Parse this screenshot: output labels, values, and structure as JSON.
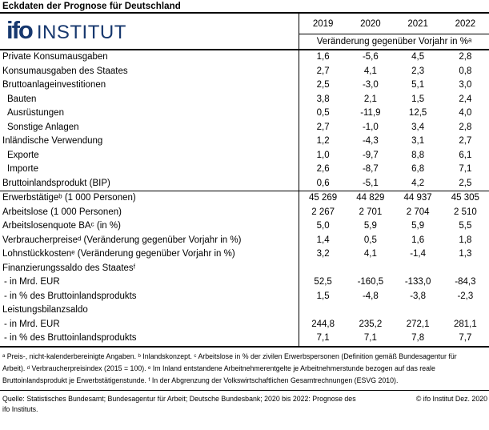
{
  "title": "Eckdaten der Prognose für Deutschland",
  "logo": {
    "wordmark": "ifo",
    "institut": "INSTITUT",
    "brand_color": "#17386e"
  },
  "table": {
    "years": [
      "2019",
      "2020",
      "2021",
      "2022"
    ],
    "subheader": "Veränderung gegenüber Vorjahr in %ᵃ",
    "rows": [
      {
        "label": "Private Konsumausgaben",
        "indent": 0,
        "values": [
          "1,6",
          "-5,6",
          "4,5",
          "2,8"
        ]
      },
      {
        "label": "Konsumausgaben des Staates",
        "indent": 0,
        "values": [
          "2,7",
          "4,1",
          "2,3",
          "0,8"
        ]
      },
      {
        "label": "Bruttoanlageinvestitionen",
        "indent": 0,
        "values": [
          "2,5",
          "-3,0",
          "5,1",
          "3,0"
        ]
      },
      {
        "label": "Bauten",
        "indent": 1,
        "values": [
          "3,8",
          "2,1",
          "1,5",
          "2,4"
        ]
      },
      {
        "label": "Ausrüstungen",
        "indent": 1,
        "values": [
          "0,5",
          "-11,9",
          "12,5",
          "4,0"
        ]
      },
      {
        "label": "Sonstige Anlagen",
        "indent": 1,
        "values": [
          "2,7",
          "-1,0",
          "3,4",
          "2,8"
        ]
      },
      {
        "label": "Inländische Verwendung",
        "indent": 0,
        "values": [
          "1,2",
          "-4,3",
          "3,1",
          "2,7"
        ]
      },
      {
        "label": "Exporte",
        "indent": 1,
        "values": [
          "1,0",
          "-9,7",
          "8,8",
          "6,1"
        ]
      },
      {
        "label": "Importe",
        "indent": 1,
        "values": [
          "2,6",
          "-8,7",
          "6,8",
          "7,1"
        ]
      },
      {
        "label": "Bruttoinlandsprodukt (BIP)",
        "indent": 0,
        "section_end": true,
        "values": [
          "0,6",
          "-5,1",
          "4,2",
          "2,5"
        ]
      },
      {
        "label": "Erwerbstätigeᵇ (1 000 Personen)",
        "indent": 0,
        "values": [
          "45 269",
          "44 829",
          "44 937",
          "45 305"
        ]
      },
      {
        "label": "Arbeitslose (1 000 Personen)",
        "indent": 0,
        "values": [
          "2 267",
          "2 701",
          "2 704",
          "2 510"
        ]
      },
      {
        "label": "Arbeitslosenquote BAᶜ (in %)",
        "indent": 0,
        "values": [
          "5,0",
          "5,9",
          "5,9",
          "5,5"
        ]
      },
      {
        "label": "Verbraucherpreiseᵈ (Veränderung gegenüber Vorjahr in %)",
        "indent": 0,
        "values": [
          "1,4",
          "0,5",
          "1,6",
          "1,8"
        ]
      },
      {
        "label": "Lohnstückkostenᵉ (Veränderung gegenüber Vorjahr in %)",
        "indent": 0,
        "values": [
          "3,2",
          "4,1",
          "-1,4",
          "1,3"
        ]
      },
      {
        "label": "Finanzierungssaldo des Staatesᶠ",
        "indent": 0,
        "values": [
          "",
          "",
          "",
          ""
        ]
      },
      {
        "label": "- in Mrd. EUR",
        "indent": 2,
        "values": [
          "52,5",
          "-160,5",
          "-133,0",
          "-84,3"
        ]
      },
      {
        "label": "- in % des Bruttoinlandsprodukts",
        "indent": 2,
        "values": [
          "1,5",
          "-4,8",
          "-3,8",
          "-2,3"
        ]
      },
      {
        "label": "Leistungsbilanzsaldo",
        "indent": 0,
        "values": [
          "",
          "",
          "",
          ""
        ]
      },
      {
        "label": "- in Mrd. EUR",
        "indent": 2,
        "values": [
          "244,8",
          "235,2",
          "272,1",
          "281,1"
        ]
      },
      {
        "label": "- in % des Bruttoinlandsprodukts",
        "indent": 2,
        "values": [
          "7,1",
          "7,1",
          "7,8",
          "7,7"
        ]
      }
    ]
  },
  "footnotes": "ᵃ Preis-, nicht-kalenderbereinigte Angaben. ᵇ Inlandskonzept. ᶜ Arbeitslose in % der zivilen Erwerbspersonen (Definition gemäß Bundesagentur für Arbeit). ᵈ Verbraucherpreisindex (2015 = 100). ᵉ Im Inland entstandene Arbeitnehmerentgelte je Arbeitnehmerstunde bezogen auf das reale Bruttoinlandsprodukt je Erwerbstätigenstunde. ᶠ In der Abgrenzung der Volkswirtschaftlichen Gesamtrechnungen (ESVG 2010).",
  "source": "Quelle: Statistisches Bundesamt; Bundesagentur für Arbeit; Deutsche Bundesbank; 2020 bis 2022: Prognose des ifo Instituts.",
  "copyright": "© ifo Institut Dez. 2020"
}
